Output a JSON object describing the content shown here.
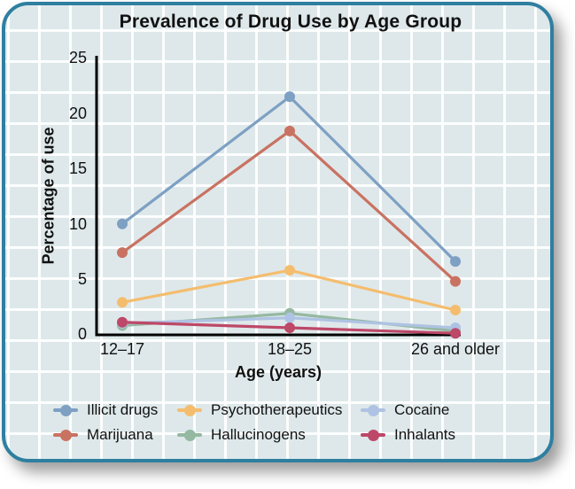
{
  "chart_data": {
    "type": "line",
    "title": "Prevalence of Drug Use by Age Group",
    "xlabel": "Age (years)",
    "ylabel": "Percentage of use",
    "categories": [
      "12–17",
      "18–25",
      "26 and older"
    ],
    "ytick_labels": [
      "0",
      "5",
      "10",
      "15",
      "20",
      "25"
    ],
    "ylim": [
      0,
      25
    ],
    "legend_position": "bottom",
    "background_grid": true,
    "series": [
      {
        "name": "Illicit drugs",
        "color": "#7DA0C3",
        "values": [
          10.0,
          21.5,
          6.6
        ]
      },
      {
        "name": "Marijuana",
        "color": "#C97262",
        "values": [
          7.4,
          18.4,
          4.8
        ]
      },
      {
        "name": "Psychotherapeutics",
        "color": "#F4BD6E",
        "values": [
          2.9,
          5.8,
          2.2
        ]
      },
      {
        "name": "Hallucinogens",
        "color": "#95B8A1",
        "values": [
          0.8,
          1.9,
          0.3
        ]
      },
      {
        "name": "Cocaine",
        "color": "#AEC3E3",
        "values": [
          1.0,
          1.5,
          0.6
        ]
      },
      {
        "name": "Inhalants",
        "color": "#BD4868",
        "values": [
          1.1,
          0.6,
          0.1
        ]
      }
    ]
  },
  "theme": {
    "card_border": "#2E7FA0",
    "card_background": "#DEE8EA",
    "grid_line": "#FFFFFF",
    "axis_color": "#000000",
    "text_color": "#111111"
  }
}
